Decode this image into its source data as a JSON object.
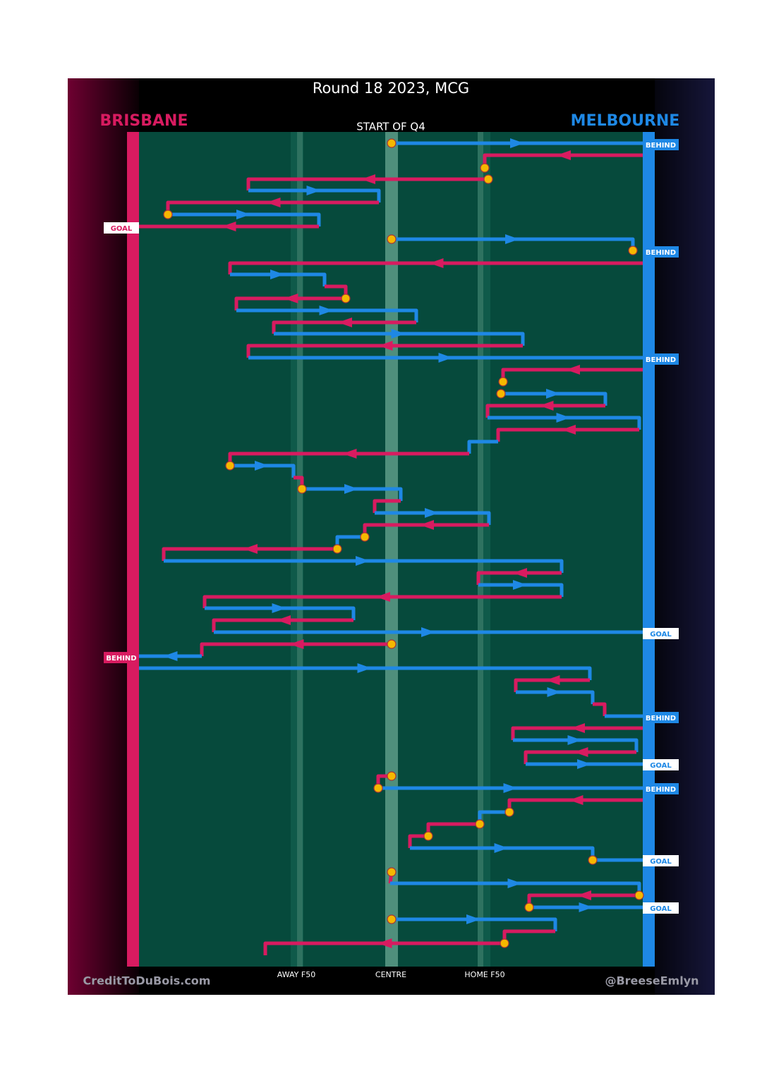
{
  "header": {
    "title": "Round 18 2023, MCG",
    "home_team": "BRISBANE",
    "away_team": "MELBOURNE",
    "start_label": "START OF Q4"
  },
  "brisbane_outcomes": [
    "GOAL",
    "BEHIND"
  ],
  "melbourne_outcomes": [
    "BEHIND",
    "BEHIND",
    "BEHIND",
    "GOAL",
    "BEHIND",
    "GOAL",
    "BEHIND",
    "GOAL",
    "GOAL"
  ],
  "zones": [
    "AWAY F50",
    "CENTRE",
    "HOME F50"
  ],
  "footer": {
    "left": "CreditToDuBois.com",
    "right": "@BreeseEmlyn"
  }
}
